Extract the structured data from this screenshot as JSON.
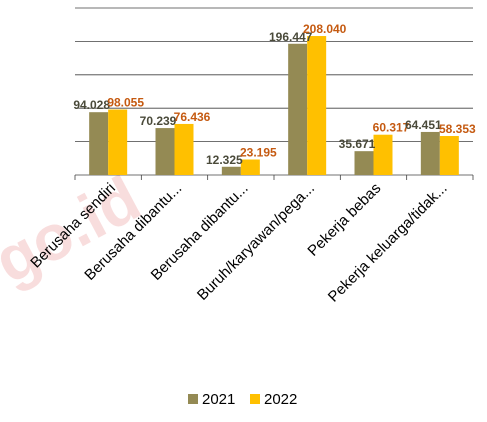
{
  "watermark": "go.id",
  "chart_data": {
    "type": "bar",
    "title": "",
    "xlabel": "",
    "ylabel": "",
    "ylim": [
      0,
      250000
    ],
    "grid": true,
    "legend_position": "bottom",
    "categories": [
      "Berusaha sendiri",
      "Berusaha dibantu...",
      "Berusaha dibantu...",
      "Buruh/karyawan/pega...",
      "Pekerja bebas",
      "Pekerja keluarga/tidak..."
    ],
    "series": [
      {
        "name": "2021",
        "color": "#948a54",
        "label_color": "#4a4a3a",
        "values": [
          94028,
          70239,
          12325,
          196447,
          35671,
          64451
        ],
        "labels": [
          "94.028",
          "70.239",
          "12.325",
          "196.447",
          "35.671",
          "64.451"
        ]
      },
      {
        "name": "2022",
        "color": "#ffc000",
        "label_color": "#c55a11",
        "values": [
          98055,
          76436,
          23195,
          208040,
          60317,
          58353
        ],
        "labels": [
          "98.055",
          "76.436",
          "23.195",
          "208.040",
          "60.317",
          "58.353"
        ]
      }
    ]
  }
}
